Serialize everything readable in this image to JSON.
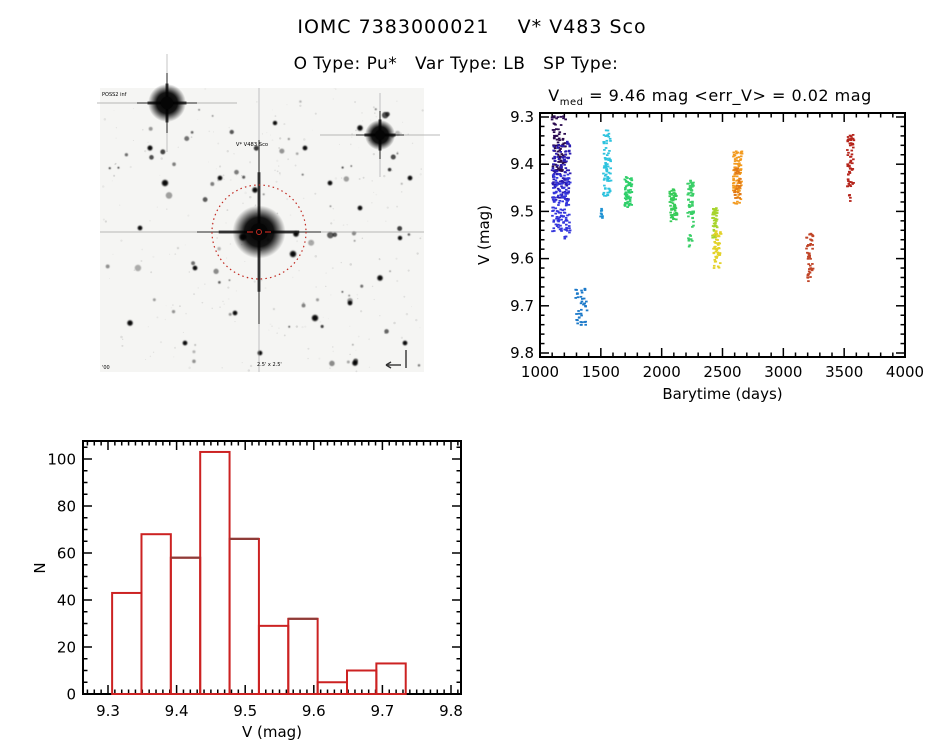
{
  "page": {
    "title": "IOMC 7383000021    V* V483 Sco",
    "subtitle": "O Type: Pu*   Var Type: LB   SP Type:"
  },
  "finding_chart": {
    "survey_label": "POSS2 inf",
    "target_label": "V* V483 Sco",
    "footer_label": "2.5' x 2.5'",
    "corner_label": "'00",
    "circle_color": "#c22a22",
    "label_color": "#c03028"
  },
  "chart_data": [
    {
      "id": "lightcurve",
      "type": "scatter",
      "title_prefix": "V",
      "title_sub": "med",
      "title_rest": " = 9.46 mag <err_V> = 0.02 mag",
      "v_med": "9.46",
      "err_v": "0.02",
      "xlabel": "Barytime (days)",
      "ylabel": "V (mag)",
      "xlim": [
        1000,
        4000
      ],
      "ylim": [
        9.3,
        9.8
      ],
      "y_inverted": true,
      "grid": false,
      "xticks": [
        "1000",
        "1500",
        "2000",
        "2500",
        "3000",
        "3500",
        "4000"
      ],
      "yticks": [
        "9.3",
        "9.4",
        "9.5",
        "9.6",
        "9.7",
        "9.8"
      ],
      "clusters": [
        {
          "x": [
            1098,
            1213
          ],
          "v": [
            9.298,
            9.415
          ],
          "color": "#2a0a50",
          "n": 95
        },
        {
          "x": [
            1098,
            1248
          ],
          "v": [
            9.352,
            9.478
          ],
          "color": "#2b1cb2",
          "n": 120
        },
        {
          "x": [
            1102,
            1250
          ],
          "v": [
            9.42,
            9.545
          ],
          "color": "#3335dc",
          "n": 120
        },
        {
          "x": [
            1200,
            1215
          ],
          "v": [
            9.551,
            9.558
          ],
          "color": "#3335dc",
          "n": 4
        },
        {
          "x": [
            1293,
            1388
          ],
          "v": [
            9.663,
            9.744
          ],
          "color": "#1b79c9",
          "n": 42
        },
        {
          "x": [
            1498,
            1514
          ],
          "v": [
            9.487,
            9.516
          ],
          "color": "#1d91d3",
          "n": 9
        },
        {
          "x": [
            1518,
            1584
          ],
          "v": [
            9.328,
            9.468
          ],
          "color": "#2fc3de",
          "n": 75
        },
        {
          "x": [
            1696,
            1756
          ],
          "v": [
            9.424,
            9.492
          ],
          "color": "#2ecf69",
          "n": 60
        },
        {
          "x": [
            2066,
            2128
          ],
          "v": [
            9.452,
            9.522
          ],
          "color": "#36cb58",
          "n": 60
        },
        {
          "x": [
            2213,
            2268
          ],
          "v": [
            9.432,
            9.507
          ],
          "color": "#3bcf68",
          "n": 55
        },
        {
          "x": [
            2218,
            2262
          ],
          "v": [
            9.507,
            9.58
          ],
          "color": "#3bcf68",
          "n": 16
        },
        {
          "x": [
            2418,
            2460
          ],
          "v": [
            9.493,
            9.556
          ],
          "color": "#a6d42c",
          "n": 45
        },
        {
          "x": [
            2426,
            2490
          ],
          "v": [
            9.532,
            9.62
          ],
          "color": "#e3d229",
          "n": 50
        },
        {
          "x": [
            2586,
            2662
          ],
          "v": [
            9.372,
            9.484
          ],
          "color": "#f39a1e",
          "n": 80
        },
        {
          "x": [
            2598,
            2648
          ],
          "v": [
            9.408,
            9.472
          ],
          "color": "#e17916",
          "n": 30
        },
        {
          "x": [
            3190,
            3246
          ],
          "v": [
            9.546,
            9.648
          ],
          "color": "#c04427",
          "n": 45
        },
        {
          "x": [
            3526,
            3582
          ],
          "v": [
            9.332,
            9.448
          ],
          "color": "#b5241b",
          "n": 60
        },
        {
          "x": [
            3534,
            3562
          ],
          "v": [
            9.462,
            9.478
          ],
          "color": "#b5241b",
          "n": 4
        }
      ]
    },
    {
      "id": "histogram",
      "type": "bar",
      "xlabel": "V (mag)",
      "ylabel": "N",
      "xlim": [
        9.26,
        9.815
      ],
      "ylim": [
        0,
        108
      ],
      "grid": false,
      "xticks": [
        "9.3",
        "9.4",
        "9.5",
        "9.6",
        "9.7",
        "9.8"
      ],
      "yticks": [
        "0",
        "20",
        "40",
        "60",
        "80",
        "100"
      ],
      "bin_start": 9.306,
      "bin_width": 0.0428,
      "bin_edges": [
        9.306,
        9.349,
        9.392,
        9.434,
        9.477,
        9.52,
        9.563,
        9.606,
        9.648,
        9.691,
        9.734
      ],
      "counts": [
        43,
        68,
        58,
        103,
        66,
        29,
        32,
        5,
        10,
        13
      ],
      "color": "#cc2222",
      "dark_color": "#8e3c38",
      "dark_top_bins": [
        2,
        4,
        6
      ]
    }
  ]
}
